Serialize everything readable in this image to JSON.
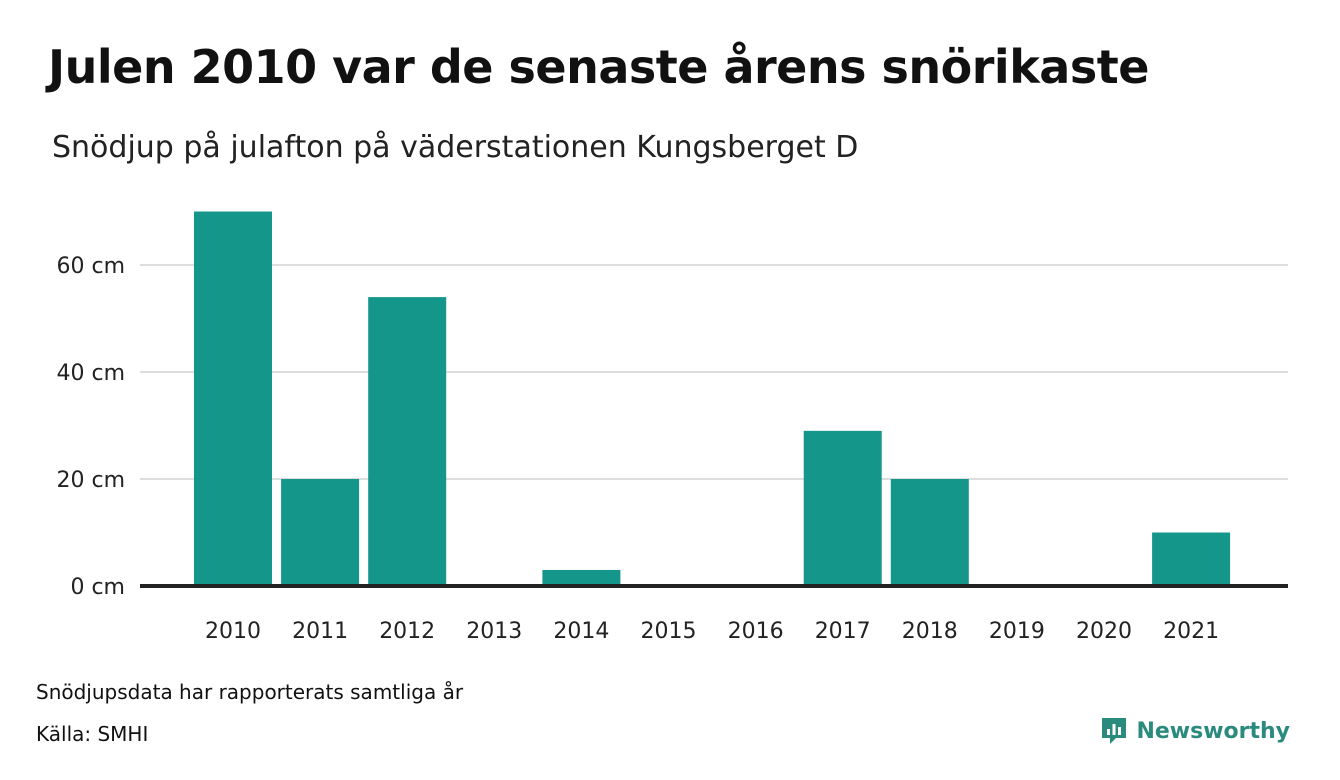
{
  "title": "Julen 2010 var de senaste årens snörikaste",
  "subtitle": "Snödjup på julafton på väderstationen Kungsberget D",
  "footnote": "Snödjupsdata har rapporterats samtliga år",
  "source": "Källa: SMHI",
  "brand": "Newsworthy",
  "colors": {
    "bar": "#14968a",
    "grid": "#dddddd",
    "axis": "#222222",
    "brand": "#2a8a7e"
  },
  "chart_data": {
    "type": "bar",
    "categories": [
      "2010",
      "2011",
      "2012",
      "2013",
      "2014",
      "2015",
      "2016",
      "2017",
      "2018",
      "2019",
      "2020",
      "2021"
    ],
    "values": [
      70,
      20,
      54,
      0,
      3,
      0,
      0,
      29,
      20,
      0,
      0,
      10
    ],
    "ylim": [
      0,
      70
    ],
    "yticks": [
      0,
      20,
      40,
      60
    ],
    "ytick_labels": [
      "0 cm",
      "20 cm",
      "40 cm",
      "60 cm"
    ],
    "grid": true,
    "legend": "none"
  }
}
